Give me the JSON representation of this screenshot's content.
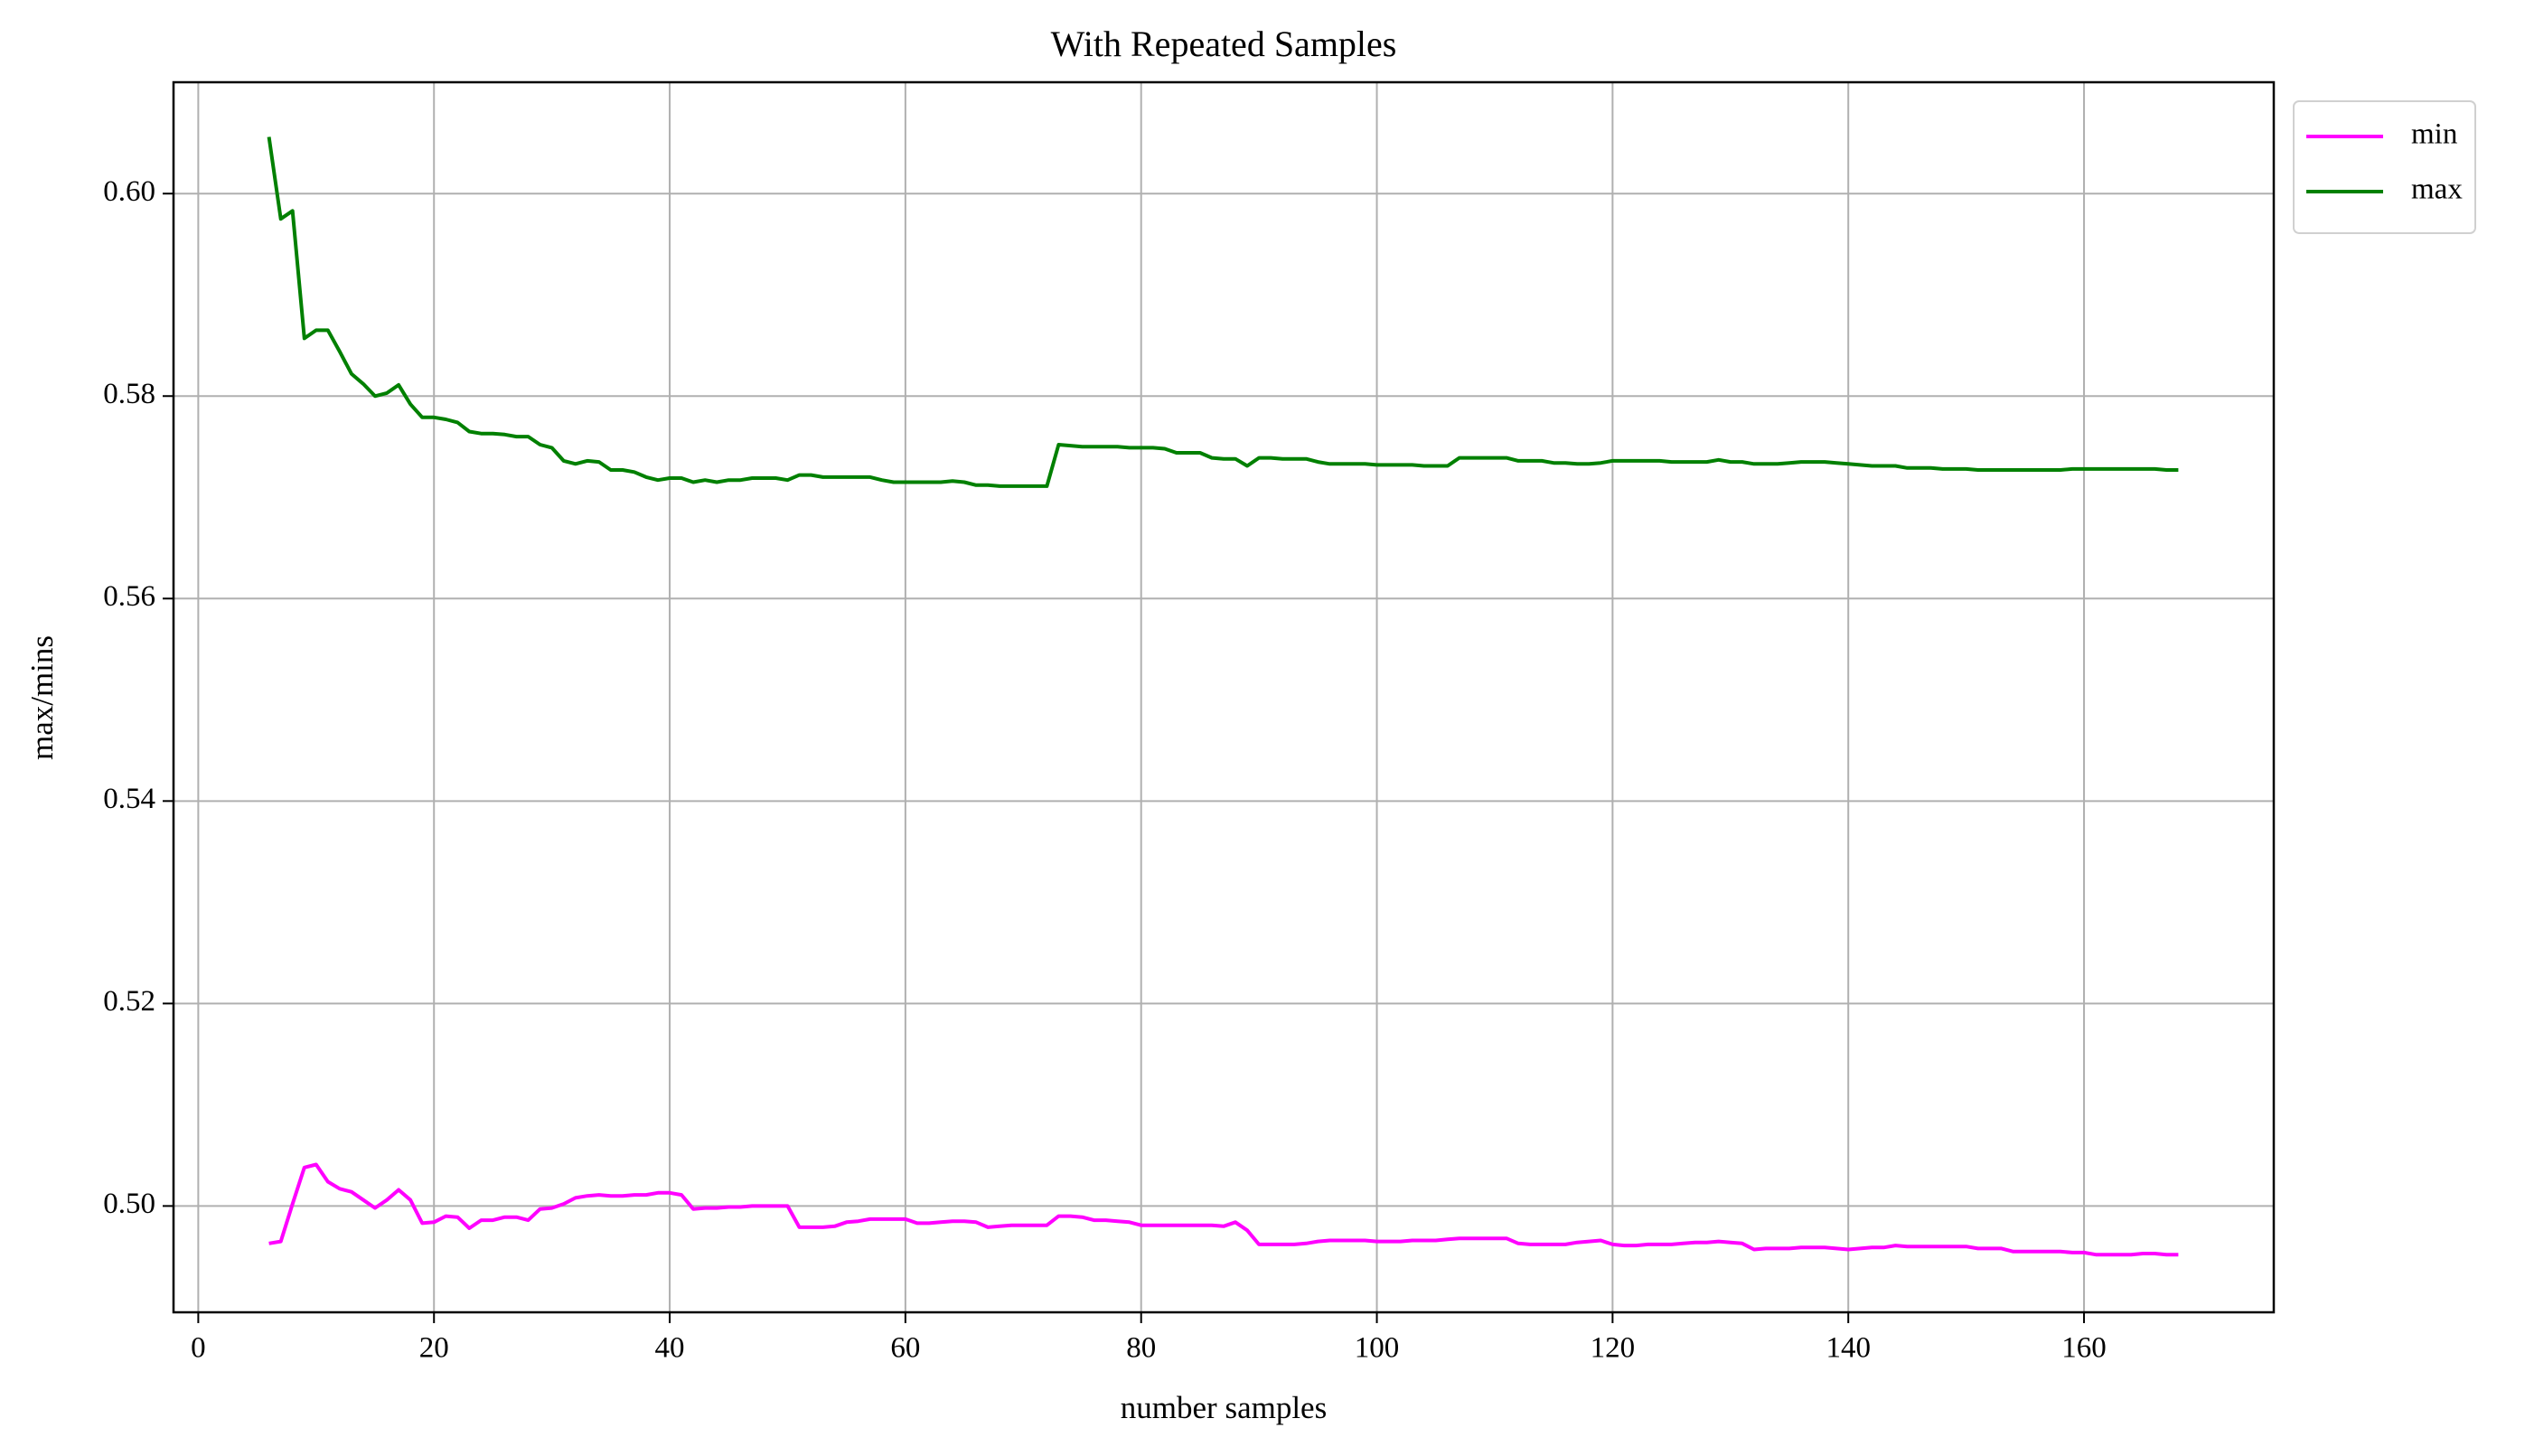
{
  "chart_data": {
    "type": "line",
    "title": "With Repeated Samples",
    "x_label": "number samples",
    "y_label": "max/mins",
    "x": [
      6,
      7,
      8,
      9,
      10,
      11,
      12,
      13,
      14,
      15,
      16,
      17,
      18,
      19,
      20,
      21,
      22,
      23,
      24,
      25,
      26,
      27,
      28,
      29,
      30,
      31,
      32,
      33,
      34,
      35,
      36,
      37,
      38,
      39,
      40,
      41,
      42,
      43,
      44,
      45,
      46,
      47,
      48,
      49,
      50,
      51,
      52,
      53,
      54,
      55,
      56,
      57,
      58,
      59,
      60,
      61,
      62,
      63,
      64,
      65,
      66,
      67,
      68,
      69,
      70,
      71,
      72,
      73,
      74,
      75,
      76,
      77,
      78,
      79,
      80,
      81,
      82,
      83,
      84,
      85,
      86,
      87,
      88,
      89,
      90,
      91,
      92,
      93,
      94,
      95,
      96,
      97,
      98,
      99,
      100,
      101,
      102,
      103,
      104,
      105,
      106,
      107,
      108,
      109,
      110,
      111,
      112,
      113,
      114,
      115,
      116,
      117,
      118,
      119,
      120,
      121,
      122,
      123,
      124,
      125,
      126,
      127,
      128,
      129,
      130,
      131,
      132,
      133,
      134,
      135,
      136,
      137,
      138,
      139,
      140,
      141,
      142,
      143,
      144,
      145,
      146,
      147,
      148,
      149,
      150,
      151,
      152,
      153,
      154,
      155,
      156,
      157,
      158,
      159,
      160,
      161,
      162,
      163,
      164,
      165,
      166,
      167,
      168
    ],
    "series": [
      {
        "name": "min",
        "color": "#ff00ff",
        "values": [
          0.4963,
          0.4965,
          0.5002,
          0.5038,
          0.5041,
          0.5024,
          0.5017,
          0.5014,
          0.5006,
          0.4998,
          0.5006,
          0.5016,
          0.5006,
          0.4983,
          0.4984,
          0.499,
          0.4989,
          0.4978,
          0.4986,
          0.4986,
          0.4989,
          0.4989,
          0.4986,
          0.4997,
          0.4998,
          0.5002,
          0.5008,
          0.501,
          0.5011,
          0.501,
          0.501,
          0.5011,
          0.5011,
          0.5013,
          0.5013,
          0.5011,
          0.4997,
          0.4998,
          0.4998,
          0.4999,
          0.4999,
          0.5,
          0.5,
          0.5,
          0.5,
          0.4979,
          0.4979,
          0.4979,
          0.498,
          0.4984,
          0.4985,
          0.4987,
          0.4987,
          0.4987,
          0.4987,
          0.4983,
          0.4983,
          0.4984,
          0.4985,
          0.4985,
          0.4984,
          0.4979,
          0.498,
          0.4981,
          0.4981,
          0.4981,
          0.4981,
          0.499,
          0.499,
          0.4989,
          0.4986,
          0.4986,
          0.4985,
          0.4984,
          0.4981,
          0.4981,
          0.4981,
          0.4981,
          0.4981,
          0.4981,
          0.4981,
          0.498,
          0.4984,
          0.4976,
          0.4962,
          0.4962,
          0.4962,
          0.4962,
          0.4963,
          0.4965,
          0.4966,
          0.4966,
          0.4966,
          0.4966,
          0.4965,
          0.4965,
          0.4965,
          0.4966,
          0.4966,
          0.4966,
          0.4967,
          0.4968,
          0.4968,
          0.4968,
          0.4968,
          0.4968,
          0.4963,
          0.4962,
          0.4962,
          0.4962,
          0.4962,
          0.4964,
          0.4965,
          0.4966,
          0.4962,
          0.4961,
          0.4961,
          0.4962,
          0.4962,
          0.4962,
          0.4963,
          0.4964,
          0.4964,
          0.4965,
          0.4964,
          0.4963,
          0.4957,
          0.4958,
          0.4958,
          0.4958,
          0.4959,
          0.4959,
          0.4959,
          0.4958,
          0.4957,
          0.4958,
          0.4959,
          0.4959,
          0.4961,
          0.496,
          0.496,
          0.496,
          0.496,
          0.496,
          0.496,
          0.4958,
          0.4958,
          0.4958,
          0.4955,
          0.4955,
          0.4955,
          0.4955,
          0.4955,
          0.4954,
          0.4954,
          0.4952,
          0.4952,
          0.4952,
          0.4952,
          0.4953,
          0.4953,
          0.4952,
          0.4952
        ]
      },
      {
        "name": "max",
        "color": "#008000",
        "values": [
          0.6056,
          0.5975,
          0.5983,
          0.5857,
          0.5865,
          0.5865,
          0.5844,
          0.5822,
          0.5812,
          0.58,
          0.5803,
          0.5811,
          0.5792,
          0.5779,
          0.5779,
          0.5777,
          0.5774,
          0.5765,
          0.5763,
          0.5763,
          0.5762,
          0.576,
          0.576,
          0.5752,
          0.5749,
          0.5736,
          0.5733,
          0.5736,
          0.5735,
          0.5727,
          0.5727,
          0.5725,
          0.572,
          0.5717,
          0.5719,
          0.5719,
          0.5715,
          0.5717,
          0.5715,
          0.5717,
          0.5717,
          0.5719,
          0.5719,
          0.5719,
          0.5717,
          0.5722,
          0.5722,
          0.572,
          0.572,
          0.572,
          0.572,
          0.572,
          0.5717,
          0.5715,
          0.5715,
          0.5715,
          0.5715,
          0.5715,
          0.5716,
          0.5715,
          0.5712,
          0.5712,
          0.5711,
          0.5711,
          0.5711,
          0.5711,
          0.5711,
          0.5752,
          0.5751,
          0.575,
          0.575,
          0.575,
          0.575,
          0.5749,
          0.5749,
          0.5749,
          0.5748,
          0.5744,
          0.5744,
          0.5744,
          0.5739,
          0.5738,
          0.5738,
          0.5731,
          0.5739,
          0.5739,
          0.5738,
          0.5738,
          0.5738,
          0.5735,
          0.5733,
          0.5733,
          0.5733,
          0.5733,
          0.5732,
          0.5732,
          0.5732,
          0.5732,
          0.5731,
          0.5731,
          0.5731,
          0.5739,
          0.5739,
          0.5739,
          0.5739,
          0.5739,
          0.5736,
          0.5736,
          0.5736,
          0.5734,
          0.5734,
          0.5733,
          0.5733,
          0.5734,
          0.5736,
          0.5736,
          0.5736,
          0.5736,
          0.5736,
          0.5735,
          0.5735,
          0.5735,
          0.5735,
          0.5737,
          0.5735,
          0.5735,
          0.5733,
          0.5733,
          0.5733,
          0.5734,
          0.5735,
          0.5735,
          0.5735,
          0.5734,
          0.5733,
          0.5732,
          0.5731,
          0.5731,
          0.5731,
          0.5729,
          0.5729,
          0.5729,
          0.5728,
          0.5728,
          0.5728,
          0.5727,
          0.5727,
          0.5727,
          0.5727,
          0.5727,
          0.5727,
          0.5727,
          0.5727,
          0.5728,
          0.5728,
          0.5728,
          0.5728,
          0.5728,
          0.5728,
          0.5728,
          0.5728,
          0.5727,
          0.5727
        ]
      }
    ],
    "xlim": [
      -2.1,
      176.1
    ],
    "xticks": [
      0,
      20,
      40,
      60,
      80,
      100,
      120,
      140,
      160
    ],
    "ylim": [
      0.4895,
      0.611
    ],
    "yticks": [
      {
        "value": 0.5,
        "label": "0.50"
      },
      0.52,
      0.54,
      0.56,
      0.58,
      {
        "value": 0.6,
        "label": "0.60"
      }
    ],
    "grid": true,
    "legend": "outside upper right"
  }
}
